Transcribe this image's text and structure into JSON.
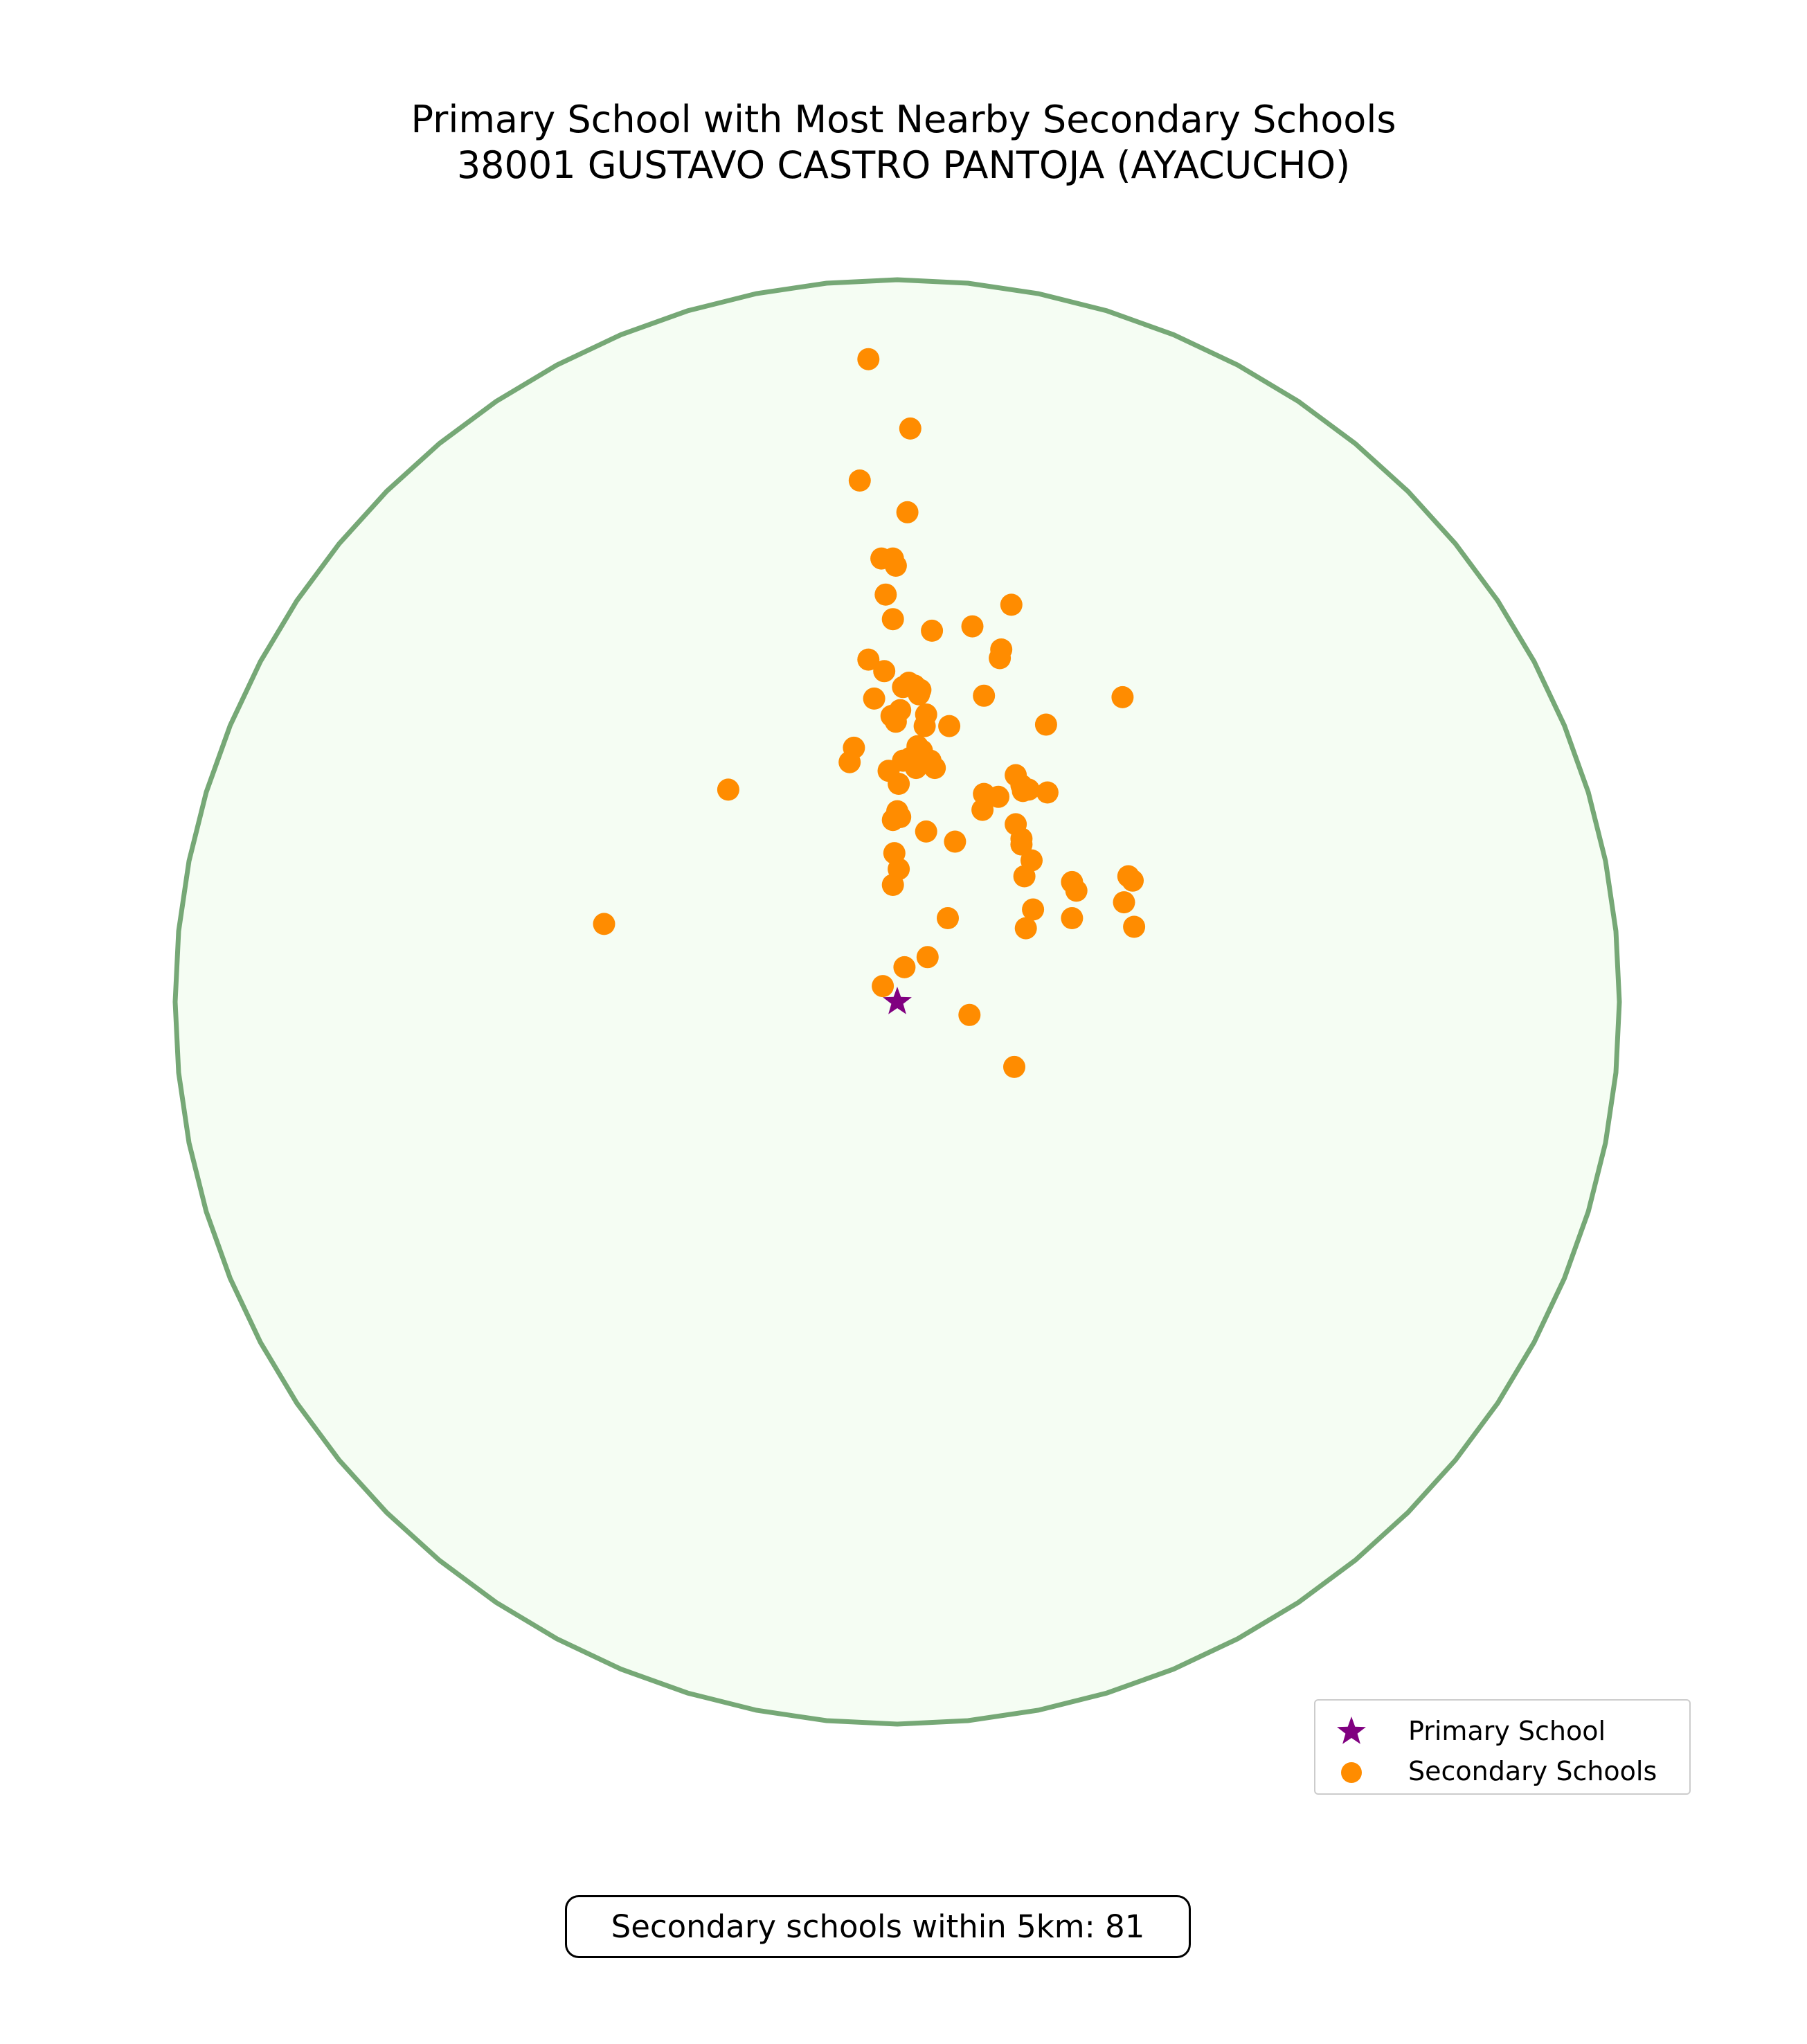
{
  "chart_data": {
    "type": "scatter",
    "title": "Primary School with Most Nearby Secondary Schools",
    "subtitle": "38001 GUSTAVO CASTRO PANTOJA (AYACUCHO)",
    "xlabel": "",
    "ylabel": "",
    "grid": false,
    "units": "km offset from primary school",
    "radius_km": 5,
    "xlim": [
      -5.4,
      5.4
    ],
    "ylim": [
      -6.9,
      6.1
    ],
    "legend_placement": "lower-right",
    "legend": [
      "Primary School",
      "Secondary Schools"
    ],
    "circle": {
      "label": "5km radius",
      "stroke": "#76a876",
      "fill": "#f5fdf3"
    },
    "primary": {
      "name": "38001 GUSTAVO CASTRO PANTOJA",
      "x": 0.0,
      "y": 0.0,
      "color": "#800080",
      "marker": "star"
    },
    "secondary": {
      "color": "#ff8c00",
      "marker": "circle",
      "points": [
        [
          -0.2,
          4.45
        ],
        [
          0.09,
          3.97
        ],
        [
          -0.26,
          3.61
        ],
        [
          0.07,
          3.39
        ],
        [
          -0.11,
          3.07
        ],
        [
          -0.03,
          3.07
        ],
        [
          -0.01,
          3.02
        ],
        [
          -0.08,
          2.82
        ],
        [
          -0.03,
          2.65
        ],
        [
          0.24,
          2.57
        ],
        [
          0.52,
          2.6
        ],
        [
          0.79,
          2.75
        ],
        [
          0.72,
          2.44
        ],
        [
          0.71,
          2.38
        ],
        [
          -0.2,
          2.37
        ],
        [
          -0.09,
          2.29
        ],
        [
          0.08,
          2.21
        ],
        [
          0.04,
          2.18
        ],
        [
          0.12,
          2.19
        ],
        [
          0.16,
          2.16
        ],
        [
          0.15,
          2.13
        ],
        [
          0.6,
          2.12
        ],
        [
          -0.16,
          2.1
        ],
        [
          0.02,
          2.02
        ],
        [
          -0.04,
          1.98
        ],
        [
          0.2,
          1.99
        ],
        [
          -0.01,
          1.94
        ],
        [
          0.19,
          1.91
        ],
        [
          0.36,
          1.91
        ],
        [
          1.03,
          1.92
        ],
        [
          1.56,
          2.11
        ],
        [
          -0.3,
          1.76
        ],
        [
          -0.33,
          1.66
        ],
        [
          0.14,
          1.77
        ],
        [
          0.17,
          1.74
        ],
        [
          0.04,
          1.67
        ],
        [
          0.09,
          1.69
        ],
        [
          0.23,
          1.67
        ],
        [
          0.19,
          1.66
        ],
        [
          0.26,
          1.62
        ],
        [
          0.13,
          1.62
        ],
        [
          -0.06,
          1.6
        ],
        [
          0.01,
          1.51
        ],
        [
          0.82,
          1.57
        ],
        [
          0.86,
          1.5
        ],
        [
          0.91,
          1.47
        ],
        [
          0.87,
          1.46
        ],
        [
          1.04,
          1.45
        ],
        [
          0.7,
          1.42
        ],
        [
          0.59,
          1.33
        ],
        [
          0.82,
          1.23
        ],
        [
          0.86,
          1.13
        ],
        [
          0.86,
          1.09
        ],
        [
          0.93,
          0.98
        ],
        [
          0.88,
          0.87
        ],
        [
          1.21,
          0.83
        ],
        [
          1.24,
          0.77
        ],
        [
          1.6,
          0.87
        ],
        [
          1.63,
          0.84
        ],
        [
          1.57,
          0.69
        ],
        [
          1.64,
          0.52
        ],
        [
          1.21,
          0.58
        ],
        [
          -1.17,
          1.47
        ],
        [
          0.6,
          1.44
        ],
        [
          0.0,
          1.32
        ],
        [
          -0.03,
          1.26
        ],
        [
          0.02,
          1.28
        ],
        [
          0.2,
          1.18
        ],
        [
          0.4,
          1.11
        ],
        [
          -0.02,
          1.03
        ],
        [
          0.01,
          0.92
        ],
        [
          -0.03,
          0.81
        ],
        [
          0.35,
          0.58
        ],
        [
          0.94,
          0.64
        ],
        [
          0.89,
          0.51
        ],
        [
          0.21,
          0.31
        ],
        [
          0.05,
          0.24
        ],
        [
          -0.1,
          0.11
        ],
        [
          0.5,
          -0.09
        ],
        [
          0.81,
          -0.45
        ],
        [
          -2.03,
          0.54
        ]
      ]
    },
    "summary": "Secondary schools within 5km: 81"
  }
}
